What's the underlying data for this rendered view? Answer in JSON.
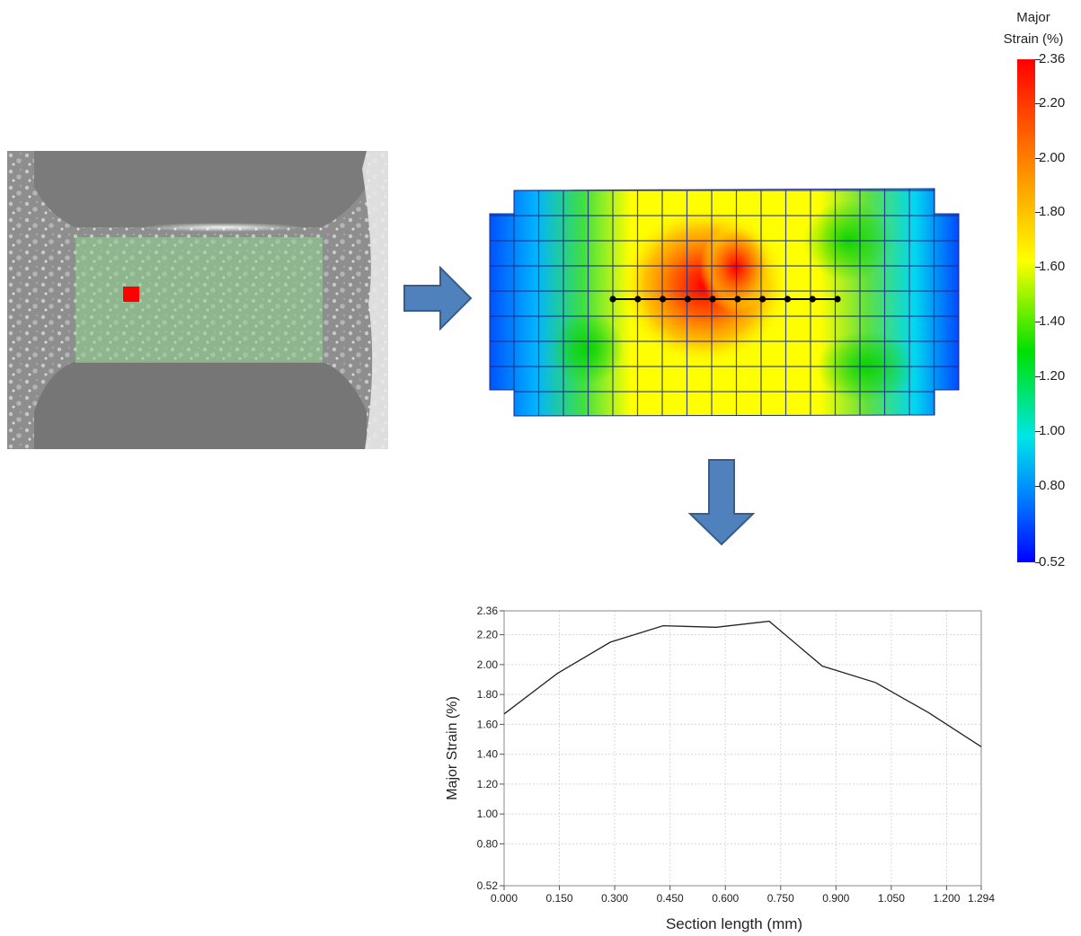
{
  "chart_data": [
    {
      "type": "heatmap",
      "title": "",
      "colorbar": {
        "title_line1": "Major",
        "title_line2": "Strain  (%)",
        "ticks": [
          "2.36",
          "2.20",
          "2.00",
          "1.80",
          "1.60",
          "1.40",
          "1.20",
          "1.00",
          "0.80",
          "0.52"
        ],
        "tick_values": [
          2.36,
          2.2,
          2.0,
          1.8,
          1.6,
          1.4,
          1.2,
          1.0,
          0.8,
          0.52
        ],
        "range": [
          0.52,
          2.36
        ],
        "colors": [
          "#0000ff",
          "#0080ff",
          "#00e6e6",
          "#00e000",
          "#ffff00",
          "#ff8000",
          "#ff0000"
        ]
      },
      "section_points": 10
    },
    {
      "type": "line",
      "xlabel": "Section length  (mm)",
      "ylabel": "Major Strain  (%)",
      "xlim": [
        0.0,
        1.294
      ],
      "ylim": [
        0.52,
        2.36
      ],
      "xticks": [
        "0.000",
        "0.150",
        "0.300",
        "0.450",
        "0.600",
        "0.750",
        "0.900",
        "1.050",
        "1.200",
        "1.294"
      ],
      "xtick_values": [
        0.0,
        0.15,
        0.3,
        0.45,
        0.6,
        0.75,
        0.9,
        1.05,
        1.2,
        1.294
      ],
      "yticks": [
        "0.52",
        "0.80",
        "1.00",
        "1.20",
        "1.40",
        "1.60",
        "1.80",
        "2.00",
        "2.20",
        "2.36"
      ],
      "ytick_values": [
        0.52,
        0.8,
        1.0,
        1.2,
        1.4,
        1.6,
        1.8,
        2.0,
        2.2,
        2.36
      ],
      "grid": true,
      "series": [
        {
          "x": [
            0.0,
            0.144,
            0.288,
            0.431,
            0.575,
            0.719,
            0.863,
            1.007,
            1.15,
            1.294
          ],
          "y": [
            1.67,
            1.94,
            2.15,
            2.26,
            2.25,
            2.29,
            1.99,
            1.88,
            1.68,
            1.45
          ]
        }
      ]
    }
  ],
  "colors": {
    "arrow_fill": "#4f81bd",
    "arrow_stroke": "#385d8a",
    "highlight_overlay": "#8fd68f",
    "marker_red": "#ff0000"
  }
}
